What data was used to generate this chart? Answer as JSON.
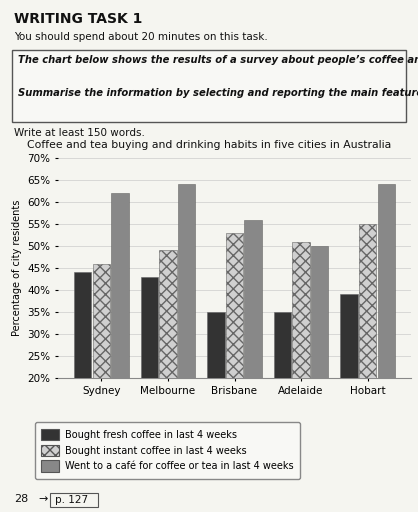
{
  "title": "Coffee and tea buying and drinking habits in five cities in Australia",
  "cities": [
    "Sydney",
    "Melbourne",
    "Brisbane",
    "Adelaide",
    "Hobart"
  ],
  "series": {
    "fresh_coffee": [
      44,
      43,
      35,
      35,
      39
    ],
    "instant_coffee": [
      46,
      49,
      53,
      51,
      55
    ],
    "cafe": [
      62,
      64,
      56,
      50,
      64
    ]
  },
  "colors": {
    "fresh_coffee": "#333333",
    "instant_coffee": "#bbbbbb",
    "cafe": "#888888"
  },
  "ylabel": "Percentage of city residents",
  "ylim": [
    20,
    70
  ],
  "yticks": [
    20,
    25,
    30,
    35,
    40,
    45,
    50,
    55,
    60,
    65,
    70
  ],
  "legend_labels": [
    "Bought fresh coffee in last 4 weeks",
    "Bought instant coffee in last 4 weeks",
    "Went to a café for coffee or tea in last 4 weeks"
  ],
  "header_title": "WRITING TASK 1",
  "header_line1": "You should spend about 20 minutes on this task.",
  "box_text1": "The chart below shows the results of a survey about people’s coffee and tea buying and drinking habits in five Australian cities.",
  "box_text2": "Summarise the information by selecting and reporting the main features, and make comparisons where relevant.",
  "write_text": "Write at least 150 words.",
  "footer_text": "28",
  "footer_arrow": "→",
  "footer_page": "p. 127",
  "background_color": "#f5f5f0"
}
